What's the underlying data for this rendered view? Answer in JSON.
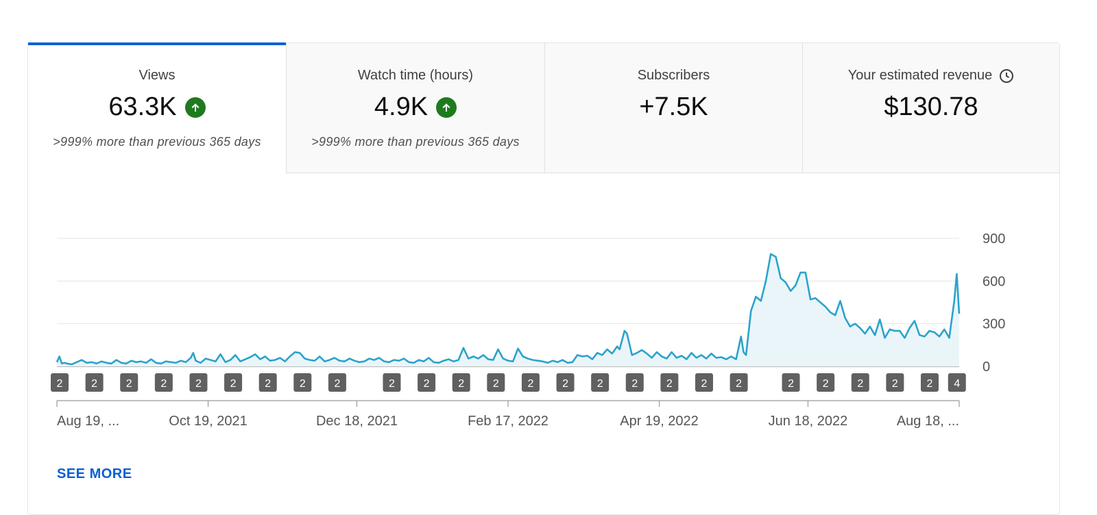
{
  "tabs": [
    {
      "label": "Views",
      "value": "63.3K",
      "trend_icon": "arrow-up-circle-icon",
      "compare": ">999% more than previous 365 days",
      "active": true
    },
    {
      "label": "Watch time (hours)",
      "value": "4.9K",
      "trend_icon": "arrow-up-circle-icon",
      "compare": ">999% more than previous 365 days",
      "active": false
    },
    {
      "label": "Subscribers",
      "value": "+7.5K",
      "active": false
    },
    {
      "label": "Your estimated revenue",
      "value": "$130.78",
      "label_icon": "clock-icon",
      "active": false
    }
  ],
  "colors": {
    "accent": "#065fd4",
    "line": "#2aa3cc",
    "fill": "#eaf5f9",
    "trend_up": "#1f7a1f",
    "marker": "#606060"
  },
  "chart_data": {
    "type": "area",
    "metric": "Views",
    "y_ticks": [
      "900",
      "600",
      "300",
      "0"
    ],
    "ylim": [
      0,
      900
    ],
    "x_tick_labels": [
      "Aug 19, ...",
      "Oct 19, 2021",
      "Dec 18, 2021",
      "Feb 17, 2022",
      "Apr 19, 2022",
      "Jun 18, 2022",
      "Aug 18, ..."
    ],
    "x_range_days": [
      0,
      364
    ],
    "x_tick_days": [
      0,
      61,
      121,
      182,
      243,
      303,
      364
    ],
    "series_points": [
      [
        0,
        30
      ],
      [
        1,
        70
      ],
      [
        2,
        20
      ],
      [
        3,
        25
      ],
      [
        4,
        20
      ],
      [
        6,
        15
      ],
      [
        8,
        30
      ],
      [
        10,
        45
      ],
      [
        12,
        25
      ],
      [
        14,
        30
      ],
      [
        16,
        20
      ],
      [
        18,
        35
      ],
      [
        20,
        25
      ],
      [
        22,
        20
      ],
      [
        24,
        45
      ],
      [
        26,
        25
      ],
      [
        28,
        20
      ],
      [
        30,
        40
      ],
      [
        32,
        30
      ],
      [
        34,
        35
      ],
      [
        36,
        25
      ],
      [
        38,
        50
      ],
      [
        40,
        25
      ],
      [
        42,
        20
      ],
      [
        44,
        35
      ],
      [
        46,
        30
      ],
      [
        48,
        25
      ],
      [
        50,
        40
      ],
      [
        52,
        30
      ],
      [
        54,
        60
      ],
      [
        55,
        95
      ],
      [
        56,
        40
      ],
      [
        58,
        25
      ],
      [
        60,
        55
      ],
      [
        62,
        45
      ],
      [
        64,
        35
      ],
      [
        66,
        85
      ],
      [
        68,
        30
      ],
      [
        70,
        45
      ],
      [
        72,
        80
      ],
      [
        74,
        35
      ],
      [
        76,
        50
      ],
      [
        78,
        65
      ],
      [
        80,
        85
      ],
      [
        82,
        50
      ],
      [
        84,
        70
      ],
      [
        86,
        40
      ],
      [
        88,
        45
      ],
      [
        90,
        60
      ],
      [
        92,
        35
      ],
      [
        94,
        70
      ],
      [
        96,
        100
      ],
      [
        98,
        95
      ],
      [
        100,
        55
      ],
      [
        102,
        45
      ],
      [
        104,
        40
      ],
      [
        106,
        70
      ],
      [
        108,
        35
      ],
      [
        110,
        45
      ],
      [
        112,
        60
      ],
      [
        114,
        40
      ],
      [
        116,
        35
      ],
      [
        118,
        55
      ],
      [
        120,
        40
      ],
      [
        122,
        30
      ],
      [
        124,
        35
      ],
      [
        126,
        55
      ],
      [
        128,
        45
      ],
      [
        130,
        60
      ],
      [
        132,
        35
      ],
      [
        134,
        30
      ],
      [
        136,
        45
      ],
      [
        138,
        40
      ],
      [
        140,
        55
      ],
      [
        142,
        30
      ],
      [
        144,
        25
      ],
      [
        146,
        45
      ],
      [
        148,
        35
      ],
      [
        150,
        60
      ],
      [
        152,
        30
      ],
      [
        154,
        25
      ],
      [
        156,
        40
      ],
      [
        158,
        50
      ],
      [
        160,
        35
      ],
      [
        162,
        45
      ],
      [
        164,
        130
      ],
      [
        166,
        55
      ],
      [
        168,
        70
      ],
      [
        170,
        55
      ],
      [
        172,
        80
      ],
      [
        174,
        50
      ],
      [
        176,
        45
      ],
      [
        178,
        120
      ],
      [
        180,
        55
      ],
      [
        182,
        40
      ],
      [
        184,
        35
      ],
      [
        186,
        125
      ],
      [
        188,
        70
      ],
      [
        190,
        55
      ],
      [
        192,
        45
      ],
      [
        194,
        40
      ],
      [
        196,
        35
      ],
      [
        198,
        25
      ],
      [
        200,
        40
      ],
      [
        202,
        30
      ],
      [
        204,
        45
      ],
      [
        206,
        25
      ],
      [
        208,
        30
      ],
      [
        210,
        80
      ],
      [
        212,
        70
      ],
      [
        214,
        75
      ],
      [
        216,
        50
      ],
      [
        218,
        95
      ],
      [
        220,
        80
      ],
      [
        222,
        120
      ],
      [
        224,
        90
      ],
      [
        226,
        140
      ],
      [
        227,
        120
      ],
      [
        229,
        250
      ],
      [
        230,
        230
      ],
      [
        232,
        80
      ],
      [
        234,
        95
      ],
      [
        236,
        115
      ],
      [
        238,
        90
      ],
      [
        240,
        60
      ],
      [
        242,
        100
      ],
      [
        244,
        70
      ],
      [
        246,
        55
      ],
      [
        248,
        100
      ],
      [
        250,
        60
      ],
      [
        252,
        75
      ],
      [
        254,
        50
      ],
      [
        256,
        95
      ],
      [
        258,
        60
      ],
      [
        260,
        80
      ],
      [
        262,
        55
      ],
      [
        264,
        90
      ],
      [
        266,
        60
      ],
      [
        268,
        65
      ],
      [
        270,
        50
      ],
      [
        272,
        70
      ],
      [
        274,
        50
      ],
      [
        276,
        210
      ],
      [
        277,
        100
      ],
      [
        278,
        80
      ],
      [
        280,
        390
      ],
      [
        282,
        490
      ],
      [
        284,
        460
      ],
      [
        286,
        600
      ],
      [
        288,
        790
      ],
      [
        290,
        770
      ],
      [
        292,
        620
      ],
      [
        294,
        590
      ],
      [
        296,
        530
      ],
      [
        298,
        570
      ],
      [
        300,
        660
      ],
      [
        302,
        660
      ],
      [
        304,
        470
      ],
      [
        306,
        480
      ],
      [
        308,
        450
      ],
      [
        310,
        420
      ],
      [
        312,
        380
      ],
      [
        314,
        360
      ],
      [
        316,
        460
      ],
      [
        318,
        340
      ],
      [
        320,
        280
      ],
      [
        322,
        300
      ],
      [
        324,
        270
      ],
      [
        326,
        230
      ],
      [
        328,
        280
      ],
      [
        330,
        220
      ],
      [
        332,
        330
      ],
      [
        334,
        200
      ],
      [
        336,
        260
      ],
      [
        338,
        250
      ],
      [
        340,
        250
      ],
      [
        342,
        200
      ],
      [
        344,
        270
      ],
      [
        346,
        320
      ],
      [
        348,
        220
      ],
      [
        350,
        210
      ],
      [
        352,
        250
      ],
      [
        354,
        240
      ],
      [
        356,
        210
      ],
      [
        358,
        260
      ],
      [
        360,
        200
      ],
      [
        362,
        460
      ],
      [
        363,
        650
      ],
      [
        364,
        370
      ]
    ],
    "event_markers": [
      {
        "label": "2",
        "day": 0
      },
      {
        "label": "2",
        "day": 14
      },
      {
        "label": "2",
        "day": 28
      },
      {
        "label": "2",
        "day": 42
      },
      {
        "label": "2",
        "day": 56
      },
      {
        "label": "2",
        "day": 70
      },
      {
        "label": "2",
        "day": 84
      },
      {
        "label": "2",
        "day": 98
      },
      {
        "label": "2",
        "day": 112
      },
      {
        "label": "2",
        "day": 134
      },
      {
        "label": "2",
        "day": 148
      },
      {
        "label": "2",
        "day": 162
      },
      {
        "label": "2",
        "day": 176
      },
      {
        "label": "2",
        "day": 190
      },
      {
        "label": "2",
        "day": 204
      },
      {
        "label": "2",
        "day": 218
      },
      {
        "label": "2",
        "day": 232
      },
      {
        "label": "2",
        "day": 246
      },
      {
        "label": "2",
        "day": 260
      },
      {
        "label": "2",
        "day": 274
      },
      {
        "label": "2",
        "day": 295
      },
      {
        "label": "2",
        "day": 309
      },
      {
        "label": "2",
        "day": 323
      },
      {
        "label": "2",
        "day": 337
      },
      {
        "label": "2",
        "day": 351
      },
      {
        "label": "4",
        "day": 362
      }
    ]
  },
  "footer": {
    "see_more": "SEE MORE"
  }
}
